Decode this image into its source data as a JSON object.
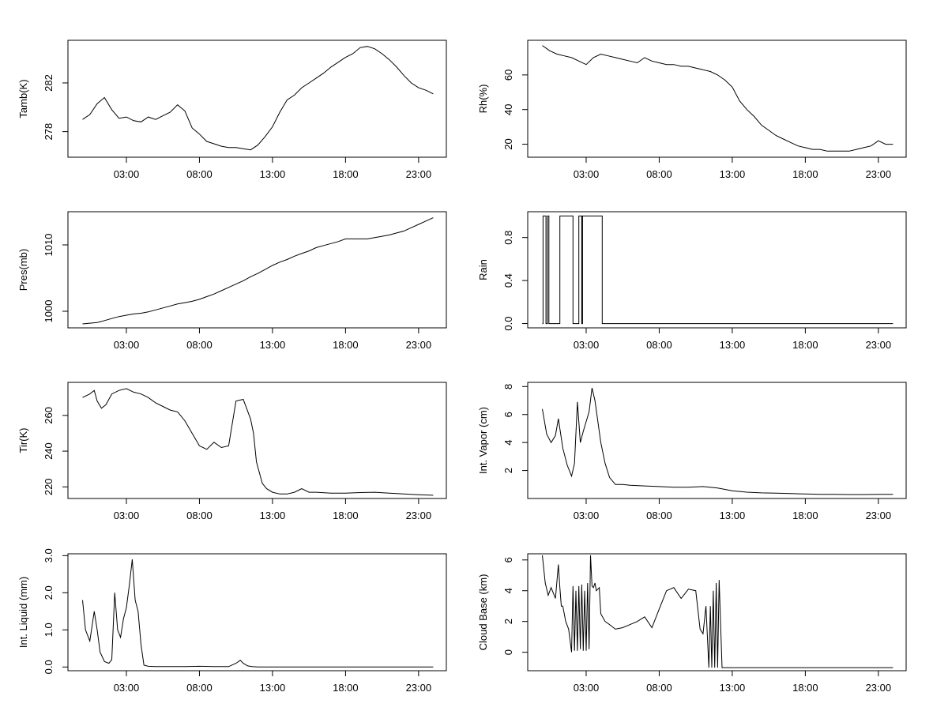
{
  "chart_data": [
    {
      "type": "line",
      "title": "",
      "xlabel": "",
      "ylabel": "Tamb(K)",
      "xlim": [
        -1.0,
        24.9
      ],
      "ylim": [
        275.9,
        285.5
      ],
      "xticks": [
        3,
        8,
        13,
        18,
        23
      ],
      "xtick_labels": [
        "03:00",
        "08:00",
        "13:00",
        "18:00",
        "23:00"
      ],
      "yticks": [
        278,
        282
      ],
      "ytick_labels": [
        "278",
        "282"
      ],
      "series": [
        {
          "x": [
            0,
            0.5,
            1,
            1.5,
            2,
            2.5,
            3,
            3.5,
            4,
            4.5,
            5,
            5.5,
            6,
            6.5,
            7,
            7.5,
            8,
            8.5,
            9,
            9.5,
            10,
            10.5,
            11,
            11.5,
            12,
            12.5,
            13,
            13.5,
            14,
            14.5,
            15,
            15.5,
            16,
            16.5,
            17,
            17.5,
            18,
            18.5,
            19,
            19.5,
            20,
            20.5,
            21,
            21.5,
            22,
            22.5,
            23,
            23.5,
            24
          ],
          "y": [
            279.0,
            279.4,
            280.3,
            280.8,
            279.8,
            279.1,
            279.2,
            278.9,
            278.8,
            279.2,
            279.0,
            279.3,
            279.6,
            280.2,
            279.7,
            278.3,
            277.8,
            277.2,
            277.0,
            276.8,
            276.7,
            276.7,
            276.6,
            276.5,
            276.9,
            277.6,
            278.4,
            279.6,
            280.6,
            281.0,
            281.6,
            282.0,
            282.4,
            282.8,
            283.3,
            283.7,
            284.1,
            284.4,
            284.9,
            285.0,
            284.8,
            284.4,
            283.9,
            283.3,
            282.6,
            282.0,
            281.6,
            281.4,
            281.1
          ]
        }
      ]
    },
    {
      "type": "line",
      "title": "",
      "xlabel": "",
      "ylabel": "Rh(%)",
      "xlim": [
        -1.0,
        24.9
      ],
      "ylim": [
        12.5,
        80.0
      ],
      "xticks": [
        3,
        8,
        13,
        18,
        23
      ],
      "xtick_labels": [
        "03:00",
        "08:00",
        "13:00",
        "18:00",
        "23:00"
      ],
      "yticks": [
        20,
        40,
        60
      ],
      "ytick_labels": [
        "20",
        "40",
        "60"
      ],
      "series": [
        {
          "x": [
            0,
            0.5,
            1,
            1.5,
            2,
            2.5,
            3,
            3.5,
            4,
            4.5,
            5,
            5.5,
            6,
            6.5,
            7,
            7.5,
            8,
            8.5,
            9,
            9.5,
            10,
            10.5,
            11,
            11.5,
            12,
            12.5,
            13,
            13.5,
            14,
            14.5,
            15,
            15.5,
            16,
            16.5,
            17,
            17.5,
            18,
            18.5,
            19,
            19.5,
            20,
            20.5,
            21,
            21.5,
            22,
            22.5,
            23,
            23.5,
            24
          ],
          "y": [
            77,
            74,
            72,
            71,
            70,
            68,
            66,
            70,
            72,
            71,
            70,
            69,
            68,
            67,
            70,
            68,
            67,
            66,
            66,
            65,
            65,
            64,
            63,
            62,
            60,
            57,
            53,
            45,
            40,
            36,
            31,
            28,
            25,
            23,
            21,
            19,
            18,
            17,
            17,
            16,
            16,
            16,
            16,
            17,
            18,
            19,
            22,
            20,
            20
          ]
        }
      ]
    },
    {
      "type": "line",
      "title": "",
      "xlabel": "",
      "ylabel": "Pres(mb)",
      "xlim": [
        -1.0,
        24.9
      ],
      "ylim": [
        997.5,
        1015.0
      ],
      "xticks": [
        3,
        8,
        13,
        18,
        23
      ],
      "xtick_labels": [
        "03:00",
        "08:00",
        "13:00",
        "18:00",
        "23:00"
      ],
      "yticks": [
        1000,
        1010
      ],
      "ytick_labels": [
        "1000",
        "1010"
      ],
      "series": [
        {
          "x": [
            0,
            0.5,
            1,
            1.5,
            2,
            2.5,
            3,
            3.5,
            4,
            4.5,
            5,
            5.5,
            6,
            6.5,
            7,
            7.5,
            8,
            8.5,
            9,
            9.5,
            10,
            10.5,
            11,
            11.5,
            12,
            12.5,
            13,
            13.5,
            14,
            14.5,
            15,
            15.5,
            16,
            16.5,
            17,
            17.5,
            18,
            18.5,
            19,
            19.5,
            20,
            20.5,
            21,
            21.5,
            22,
            22.5,
            23,
            23.5,
            24
          ],
          "y": [
            998.1,
            998.2,
            998.3,
            998.6,
            998.9,
            999.2,
            999.4,
            999.6,
            999.7,
            999.9,
            1000.2,
            1000.5,
            1000.8,
            1001.1,
            1001.3,
            1001.5,
            1001.8,
            1002.2,
            1002.6,
            1003.1,
            1003.6,
            1004.1,
            1004.6,
            1005.2,
            1005.7,
            1006.3,
            1006.9,
            1007.4,
            1007.8,
            1008.3,
            1008.7,
            1009.1,
            1009.6,
            1009.9,
            1010.2,
            1010.5,
            1010.9,
            1010.9,
            1010.9,
            1010.9,
            1011.1,
            1011.3,
            1011.5,
            1011.8,
            1012.1,
            1012.6,
            1013.1,
            1013.6,
            1014.1
          ]
        }
      ]
    },
    {
      "type": "line",
      "title": "",
      "xlabel": "",
      "ylabel": "Rain",
      "xlim": [
        -1.0,
        24.9
      ],
      "ylim": [
        -0.04,
        1.04
      ],
      "xticks": [
        3,
        8,
        13,
        18,
        23
      ],
      "xtick_labels": [
        "03:00",
        "08:00",
        "13:00",
        "18:00",
        "23:00"
      ],
      "yticks": [
        0.0,
        0.4,
        0.8
      ],
      "ytick_labels": [
        "0.0",
        "0.4",
        "0.8"
      ],
      "series": [
        {
          "x": [
            0,
            0.05,
            0.05,
            0.25,
            0.25,
            0.35,
            0.35,
            0.45,
            0.45,
            1.2,
            1.2,
            2.1,
            2.1,
            2.5,
            2.5,
            2.7,
            2.7,
            2.75,
            2.75,
            4.1,
            4.1,
            24
          ],
          "y": [
            0,
            0,
            1,
            1,
            0,
            0,
            1,
            1,
            0,
            0,
            1,
            1,
            0,
            0,
            1,
            1,
            0,
            0,
            1,
            1,
            0,
            0
          ]
        }
      ]
    },
    {
      "type": "line",
      "title": "",
      "xlabel": "",
      "ylabel": "Tir(K)",
      "xlim": [
        -1.0,
        24.9
      ],
      "ylim": [
        213.5,
        278.5
      ],
      "xticks": [
        3,
        8,
        13,
        18,
        23
      ],
      "xtick_labels": [
        "03:00",
        "08:00",
        "13:00",
        "18:00",
        "23:00"
      ],
      "yticks": [
        220,
        240,
        260
      ],
      "ytick_labels": [
        "220",
        "240",
        "260"
      ],
      "series": [
        {
          "x": [
            0,
            0.5,
            0.8,
            1.0,
            1.3,
            1.6,
            2.0,
            2.5,
            3.0,
            3.5,
            4.0,
            4.5,
            5.0,
            5.5,
            6.0,
            6.5,
            7.0,
            7.5,
            8.0,
            8.5,
            9.0,
            9.5,
            10.0,
            10.5,
            11.0,
            11.5,
            11.7,
            11.9,
            12.1,
            12.3,
            12.6,
            13.0,
            13.5,
            14.0,
            14.5,
            15.0,
            15.5,
            16,
            17,
            18,
            19,
            20,
            21,
            22,
            23,
            24
          ],
          "y": [
            270,
            272,
            274,
            268,
            264,
            266,
            272,
            274,
            275,
            273,
            272,
            270,
            267,
            265,
            263,
            262,
            257,
            250,
            243,
            241,
            245,
            242,
            243,
            268,
            269,
            258,
            250,
            234,
            228,
            222,
            219,
            217,
            216,
            216,
            217,
            219,
            217,
            217,
            216.5,
            216.5,
            216.8,
            217,
            216.5,
            216,
            215.6,
            215.3
          ]
        }
      ]
    },
    {
      "type": "line",
      "title": "",
      "xlabel": "",
      "ylabel": "Int. Vapor (cm)",
      "xlim": [
        -1.0,
        24.9
      ],
      "ylim": [
        0.0,
        8.3
      ],
      "xticks": [
        3,
        8,
        13,
        18,
        23
      ],
      "xtick_labels": [
        "03:00",
        "08:00",
        "13:00",
        "18:00",
        "23:00"
      ],
      "yticks": [
        2,
        4,
        6,
        8
      ],
      "ytick_labels": [
        "2",
        "4",
        "6",
        "8"
      ],
      "series": [
        {
          "x": [
            0,
            0.3,
            0.6,
            0.9,
            1.1,
            1.4,
            1.7,
            2.0,
            2.2,
            2.4,
            2.6,
            2.8,
            3.0,
            3.2,
            3.4,
            3.6,
            3.8,
            4.0,
            4.3,
            4.6,
            5.0,
            5.5,
            6.0,
            7.0,
            8.0,
            9.0,
            10.0,
            11.0,
            12.0,
            13.0,
            14.0,
            15.0,
            16.0,
            17,
            18,
            19,
            20,
            21,
            22,
            23,
            24
          ],
          "y": [
            6.4,
            4.6,
            4.0,
            4.5,
            5.7,
            3.6,
            2.4,
            1.6,
            2.5,
            6.9,
            4.0,
            4.8,
            5.5,
            6.2,
            7.9,
            7.0,
            5.5,
            4.0,
            2.5,
            1.5,
            1.0,
            1.0,
            0.95,
            0.9,
            0.85,
            0.8,
            0.8,
            0.85,
            0.75,
            0.55,
            0.45,
            0.4,
            0.38,
            0.35,
            0.32,
            0.3,
            0.3,
            0.28,
            0.28,
            0.3,
            0.3
          ]
        }
      ]
    },
    {
      "type": "line",
      "title": "",
      "xlabel": "",
      "ylabel": "Int. Liquid (mm)",
      "xlim": [
        -1.0,
        24.9
      ],
      "ylim": [
        -0.1,
        3.05
      ],
      "xticks": [
        3,
        8,
        13,
        18,
        23
      ],
      "xtick_labels": [
        "03:00",
        "08:00",
        "13:00",
        "18:00",
        "23:00"
      ],
      "yticks": [
        0.0,
        1.0,
        2.0,
        3.0
      ],
      "ytick_labels": [
        "0.0",
        "1.0",
        "2.0",
        "3.0"
      ],
      "series": [
        {
          "x": [
            0,
            0.2,
            0.5,
            0.8,
            1.0,
            1.2,
            1.5,
            1.8,
            2.0,
            2.2,
            2.4,
            2.6,
            2.8,
            3.0,
            3.2,
            3.4,
            3.6,
            3.8,
            4.0,
            4.2,
            4.5,
            5,
            6,
            7,
            8,
            9,
            10,
            10.5,
            10.8,
            11,
            11.3,
            11.6,
            12,
            14,
            16,
            18,
            20,
            22,
            24
          ],
          "y": [
            1.8,
            1.0,
            0.7,
            1.5,
            1.0,
            0.4,
            0.15,
            0.1,
            0.2,
            2.0,
            1.0,
            0.8,
            1.3,
            1.6,
            2.2,
            2.9,
            1.8,
            1.5,
            0.6,
            0.05,
            0.02,
            0.01,
            0.01,
            0.01,
            0.02,
            0.01,
            0.01,
            0.1,
            0.18,
            0.1,
            0.03,
            0.01,
            0.0,
            0.0,
            0.0,
            0.0,
            0.0,
            0.0,
            0.0
          ]
        }
      ]
    },
    {
      "type": "line",
      "title": "",
      "xlabel": "",
      "ylabel": "Cloud Base (km)",
      "xlim": [
        -1.0,
        24.9
      ],
      "ylim": [
        -1.2,
        6.4
      ],
      "xticks": [
        3,
        8,
        13,
        18,
        23
      ],
      "xtick_labels": [
        "03:00",
        "08:00",
        "13:00",
        "18:00",
        "23:00"
      ],
      "yticks": [
        0,
        2,
        4,
        6
      ],
      "ytick_labels": [
        "0",
        "2",
        "4",
        "6"
      ],
      "series": [
        {
          "x": [
            0,
            0.2,
            0.4,
            0.6,
            0.9,
            1.1,
            1.2,
            1.3,
            1.4,
            1.6,
            1.8,
            2.0,
            2.1,
            2.2,
            2.3,
            2.4,
            2.5,
            2.6,
            2.7,
            2.8,
            2.9,
            3.0,
            3.1,
            3.2,
            3.3,
            3.4,
            3.5,
            3.6,
            3.7,
            3.8,
            3.9,
            4.0,
            4.3,
            4.6,
            5,
            5.5,
            6,
            6.5,
            7,
            7.5,
            8,
            8.5,
            9,
            9.5,
            10,
            10.5,
            10.8,
            11,
            11.2,
            11.4,
            11.5,
            11.6,
            11.7,
            11.8,
            11.9,
            12.0,
            12.1,
            12.3,
            13,
            16,
            20,
            24
          ],
          "y": [
            6.3,
            4.5,
            3.7,
            4.2,
            3.5,
            5.7,
            4.2,
            3.0,
            3.0,
            2.0,
            1.5,
            0.0,
            4.3,
            0.1,
            4.0,
            0.1,
            4.3,
            0.2,
            4.4,
            0.1,
            4.0,
            0.1,
            4.5,
            0.2,
            6.3,
            4.3,
            4.2,
            4.5,
            4.0,
            4.1,
            4.2,
            2.5,
            2.0,
            1.8,
            1.5,
            1.6,
            1.8,
            2.0,
            2.3,
            1.6,
            2.8,
            4.0,
            4.2,
            3.5,
            4.1,
            4.0,
            1.5,
            1.2,
            3.0,
            -1.0,
            3.0,
            -1.0,
            4.0,
            -1.0,
            4.5,
            -1.0,
            4.7,
            -1.0,
            -1.0,
            -1.0,
            -1.0,
            -1.0
          ]
        }
      ]
    }
  ]
}
